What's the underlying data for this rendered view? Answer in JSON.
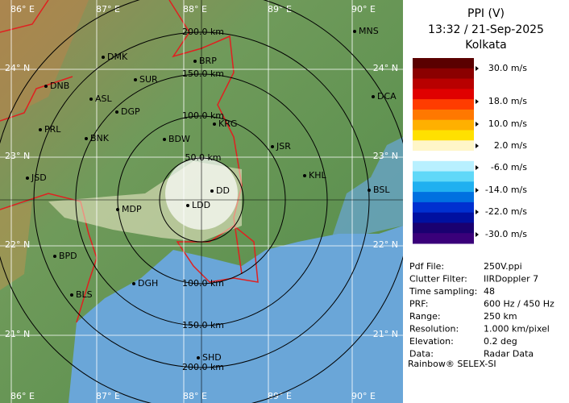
{
  "header": {
    "product": "PPI (V)",
    "time": "13:32 / 21-Sep-2025",
    "site": "Kolkata"
  },
  "legend": {
    "labels": [
      "30.0 m/s",
      "18.0 m/s",
      "10.0 m/s",
      "2.0 m/s",
      "-6.0 m/s",
      "-14.0 m/s",
      "-22.0 m/s",
      "-30.0 m/s"
    ]
  },
  "info": {
    "rows": [
      [
        "Pdf File:",
        "250V.ppi"
      ],
      [
        "Clutter Filter:",
        "IIRDoppler 7"
      ],
      [
        "Time sampling:",
        "48"
      ],
      [
        "PRF:",
        "600 Hz / 450 Hz"
      ],
      [
        "Range:",
        "250 km"
      ],
      [
        "Resolution:",
        "1.000 km/pixel"
      ],
      [
        "Elevation:",
        "0.2 deg"
      ],
      [
        "Data:",
        "Radar Data"
      ]
    ]
  },
  "footer": "Rainbow® SELEX-SI",
  "map": {
    "longitudes": [
      "86° E",
      "87° E",
      "88° E",
      "89° E",
      "90° E"
    ],
    "latitudes": [
      "24° N",
      "23° N",
      "22° N",
      "21° N"
    ],
    "ranges": [
      "50.0 km",
      "100.0 km",
      "150.0 km",
      "200.0 km"
    ],
    "cities": [
      "MNS",
      "DMK",
      "BRP",
      "DNB",
      "SUR",
      "ASL",
      "DGP",
      "DCA",
      "KRG",
      "PRL",
      "BNK",
      "BDW",
      "JSR",
      "KHL",
      "JSD",
      "DD",
      "BSL",
      "MDP",
      "LDD",
      "BPD",
      "DGH",
      "BLS",
      "SHD"
    ]
  }
}
